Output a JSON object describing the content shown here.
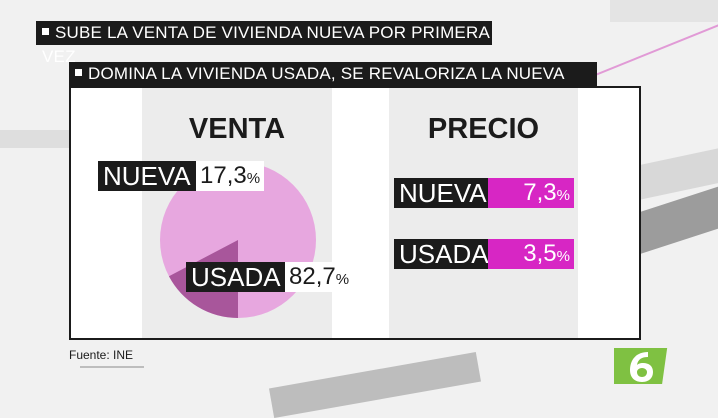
{
  "headlines": {
    "line1": "SUBE LA VENTA DE VIVIENDA NUEVA POR PRIMERA VEZ",
    "line2": "DOMINA LA VIVIENDA USADA, SE REVALORIZA LA NUEVA"
  },
  "venta": {
    "title": "VENTA",
    "nueva": {
      "label": "NUEVA",
      "value": "17,3",
      "unit": "%"
    },
    "usada": {
      "label": "USADA",
      "value": "82,7",
      "unit": "%"
    },
    "slice_fraction_nueva": 0.173,
    "colors": {
      "nueva": "#a8569b",
      "usada": "#e7a7df"
    }
  },
  "precio": {
    "title": "PRECIO",
    "nueva": {
      "label": "NUEVA",
      "value": "7,3",
      "unit": "%"
    },
    "usada": {
      "label": "USADA",
      "value": "3,5",
      "unit": "%"
    },
    "accent": "#d726c4"
  },
  "source": "Fuente: INE",
  "logo_icon": "lasexta-6-logo-icon"
}
